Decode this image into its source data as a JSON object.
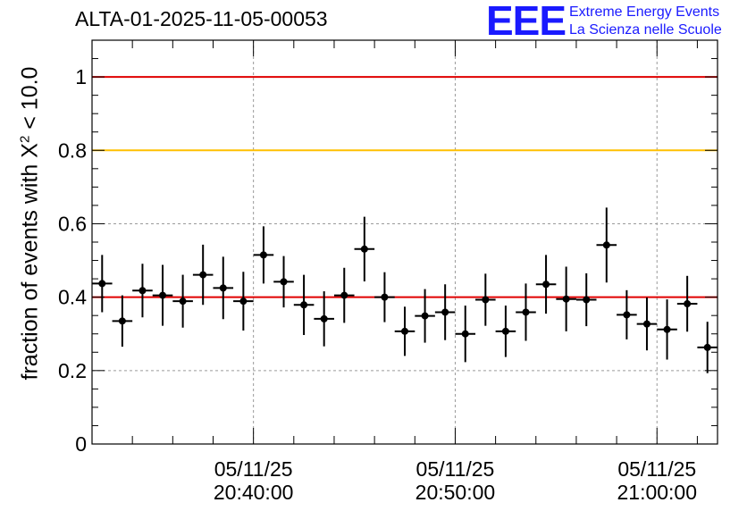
{
  "header": {
    "title": "ALTA-01-2025-11-05-00053",
    "logo_text": "EEE",
    "logo_line1": "Extreme Energy Events",
    "logo_line2": "La Scienza nelle Scuole"
  },
  "chart_data": {
    "type": "scatter",
    "title": "ALTA-01-2025-11-05-00053",
    "ylabel_prefix": "fraction of events with ",
    "ylabel_symbol": "X",
    "ylabel_sup": "2",
    "ylabel_suffix": " < 10.0",
    "xlabel": "",
    "x_unit": "minutes after 05/11/25 20:32",
    "xlim": [
      0,
      31
    ],
    "ylim": [
      0,
      1.1
    ],
    "x_ticks": [
      {
        "value": 8,
        "date": "05/11/25",
        "time": "20:40:00"
      },
      {
        "value": 18,
        "date": "05/11/25",
        "time": "20:50:00"
      },
      {
        "value": 28,
        "date": "05/11/25",
        "time": "21:00:00"
      }
    ],
    "y_ticks": [
      {
        "value": 0,
        "label": "0"
      },
      {
        "value": 0.2,
        "label": "0.2"
      },
      {
        "value": 0.4,
        "label": "0.4"
      },
      {
        "value": 0.6,
        "label": "0.6"
      },
      {
        "value": 0.8,
        "label": "0.8"
      },
      {
        "value": 1.0,
        "label": "1"
      }
    ],
    "reference_lines": [
      {
        "y": 1.0,
        "color": "#e00000"
      },
      {
        "y": 0.8,
        "color": "#ffc000"
      },
      {
        "y": 0.4,
        "color": "#e00000"
      }
    ],
    "grid": true,
    "series": [
      {
        "x": [
          0.5,
          1.5,
          2.5,
          3.5,
          4.5,
          5.5,
          6.5,
          7.5,
          8.5,
          9.5,
          10.5,
          11.5,
          12.5,
          13.5,
          14.5,
          15.5,
          16.5,
          17.5,
          18.5,
          19.5,
          20.5,
          21.5,
          22.5,
          23.5,
          24.5,
          25.5,
          26.5,
          27.5,
          28.5,
          29.5,
          30.5
        ],
        "y": [
          0.437,
          0.335,
          0.418,
          0.405,
          0.389,
          0.461,
          0.425,
          0.389,
          0.515,
          0.442,
          0.379,
          0.341,
          0.405,
          0.531,
          0.4,
          0.307,
          0.349,
          0.359,
          0.3,
          0.393,
          0.307,
          0.359,
          0.435,
          0.395,
          0.393,
          0.542,
          0.352,
          0.327,
          0.312,
          0.382,
          0.263
        ],
        "y_err": [
          0.078,
          0.07,
          0.073,
          0.083,
          0.072,
          0.082,
          0.085,
          0.08,
          0.078,
          0.07,
          0.082,
          0.075,
          0.075,
          0.088,
          0.068,
          0.067,
          0.073,
          0.076,
          0.077,
          0.071,
          0.07,
          0.078,
          0.08,
          0.088,
          0.072,
          0.102,
          0.067,
          0.072,
          0.082,
          0.076,
          0.07
        ],
        "color": "#000000"
      }
    ]
  }
}
